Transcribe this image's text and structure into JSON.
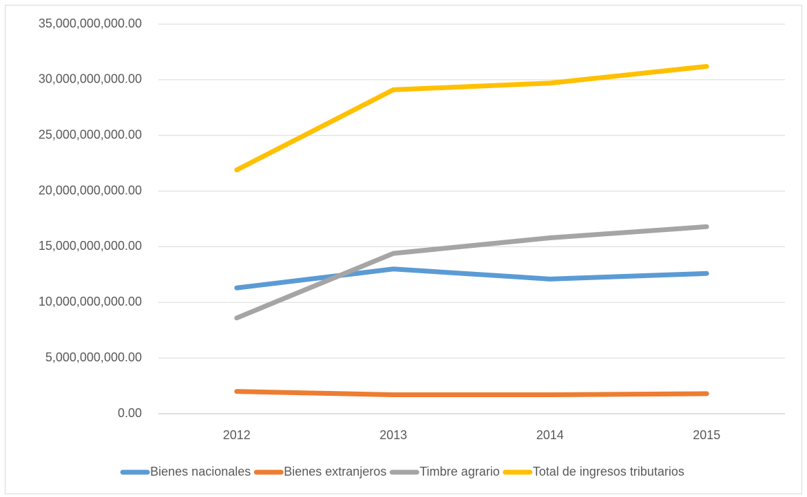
{
  "chart_data": {
    "type": "line",
    "categories": [
      "2012",
      "2013",
      "2014",
      "2015"
    ],
    "series": [
      {
        "name": "Bienes nacionales",
        "color": "#5b9bd5",
        "values": [
          11300000000,
          13000000000,
          12100000000,
          12600000000
        ]
      },
      {
        "name": "Bienes extranjeros",
        "color": "#ed7d31",
        "values": [
          2000000000,
          1700000000,
          1700000000,
          1800000000
        ]
      },
      {
        "name": "Timbre agrario",
        "color": "#a5a5a5",
        "values": [
          8600000000,
          14400000000,
          15800000000,
          16800000000
        ]
      },
      {
        "name": "Total de ingresos tributarios",
        "color": "#ffc000",
        "values": [
          21900000000,
          29100000000,
          29700000000,
          31200000000
        ]
      }
    ],
    "ylim": [
      0,
      35000000000
    ],
    "yticks": [
      {
        "value": 0,
        "label": "0.00"
      },
      {
        "value": 5000000000,
        "label": "5,000,000,000.00"
      },
      {
        "value": 10000000000,
        "label": "10,000,000,000.00"
      },
      {
        "value": 15000000000,
        "label": "15,000,000,000.00"
      },
      {
        "value": 20000000000,
        "label": "20,000,000,000.00"
      },
      {
        "value": 25000000000,
        "label": "25,000,000,000.00"
      },
      {
        "value": 30000000000,
        "label": "30,000,000,000.00"
      },
      {
        "value": 35000000000,
        "label": "35,000,000,000.00"
      }
    ],
    "grid": true,
    "legend": "bottom"
  }
}
